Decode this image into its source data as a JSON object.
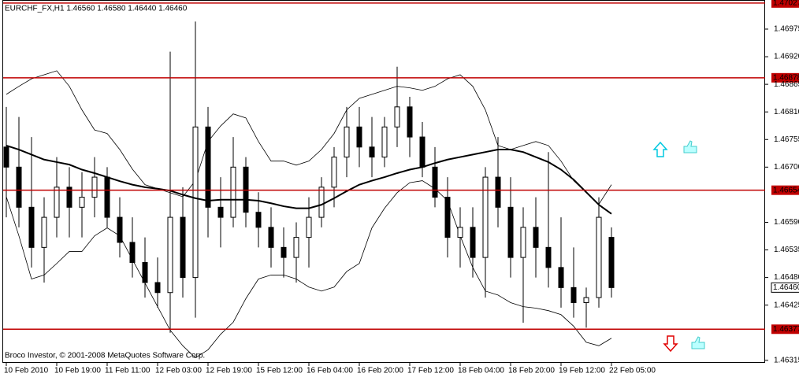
{
  "chart_data": {
    "type": "candlestick",
    "title": "EURCHF_FX,H1  1.46560 1.46580 1.46440 1.46460",
    "copyright": "Broco Investor, © 2001-2008 MetaQuotes Software Corp.",
    "categories": [
      "10 Feb 2010",
      null,
      null,
      null,
      "10 Feb 19:00",
      null,
      null,
      null,
      "11 Feb 11:00",
      null,
      null,
      null,
      "12 Feb 03:00",
      null,
      null,
      null,
      "12 Feb 19:00",
      null,
      null,
      null,
      "15 Feb 12:00",
      null,
      null,
      null,
      "16 Feb 04:00",
      null,
      null,
      null,
      "16 Feb 20:00",
      null,
      null,
      null,
      "17 Feb 12:00",
      null,
      null,
      null,
      "18 Feb 04:00",
      null,
      null,
      null,
      "18 Feb 20:00",
      null,
      null,
      null,
      "19 Feb 12:00",
      null,
      null,
      null,
      "22 Feb 05:00"
    ],
    "open": [
      1.4674,
      1.467,
      1.4662,
      1.4654,
      1.466,
      1.4666,
      1.4662,
      1.4664,
      1.4668,
      1.466,
      1.4655,
      1.4651,
      1.4647,
      1.4645,
      1.466,
      1.4648,
      1.4678,
      1.4662,
      1.466,
      1.467,
      1.4661,
      1.4658,
      1.4654,
      1.4652,
      1.4656,
      1.466,
      1.4666,
      1.4672,
      1.4678,
      1.4674,
      1.4672,
      1.4678,
      1.4682,
      1.4676,
      1.467,
      1.4664,
      1.4656,
      1.4658,
      1.4652,
      1.4668,
      1.4662,
      1.4652,
      1.4658,
      1.4654,
      1.465,
      1.4646,
      1.4643,
      1.4644,
      1.4656
    ],
    "high": [
      1.4682,
      1.468,
      1.4676,
      1.4664,
      1.4672,
      1.467,
      1.4669,
      1.4672,
      1.467,
      1.4664,
      1.466,
      1.4656,
      1.4652,
      1.4693,
      1.4666,
      1.4699,
      1.4682,
      1.4668,
      1.4676,
      1.4672,
      1.4665,
      1.4662,
      1.4658,
      1.4659,
      1.4664,
      1.4668,
      1.4674,
      1.4682,
      1.4682,
      1.468,
      1.468,
      1.469,
      1.4684,
      1.4679,
      1.4674,
      1.4668,
      1.4662,
      1.4662,
      1.467,
      1.4676,
      1.4668,
      1.4662,
      1.4664,
      1.4673,
      1.466,
      1.4654,
      1.4646,
      1.4664,
      1.4658
    ],
    "low": [
      1.466,
      1.4658,
      1.465,
      1.4647,
      1.4656,
      1.4656,
      1.4656,
      1.466,
      1.4658,
      1.4652,
      1.4648,
      1.4644,
      1.4642,
      1.4637,
      1.4644,
      1.464,
      1.4656,
      1.4654,
      1.4658,
      1.4658,
      1.4654,
      1.465,
      1.4648,
      1.4647,
      1.465,
      1.4658,
      1.4662,
      1.4668,
      1.467,
      1.4668,
      1.467,
      1.4674,
      1.4672,
      1.4668,
      1.4662,
      1.4652,
      1.465,
      1.4648,
      1.4644,
      1.4658,
      1.4648,
      1.4639,
      1.4648,
      1.4646,
      1.4642,
      1.464,
      1.4638,
      1.4642,
      1.4644
    ],
    "close": [
      1.467,
      1.4662,
      1.4654,
      1.466,
      1.4666,
      1.4662,
      1.4664,
      1.4668,
      1.466,
      1.4655,
      1.4651,
      1.4647,
      1.4645,
      1.466,
      1.4648,
      1.4678,
      1.4662,
      1.466,
      1.467,
      1.4661,
      1.4658,
      1.4654,
      1.4652,
      1.4656,
      1.466,
      1.4666,
      1.4672,
      1.4678,
      1.4674,
      1.4672,
      1.4678,
      1.4682,
      1.4676,
      1.467,
      1.4664,
      1.4656,
      1.4658,
      1.4652,
      1.4668,
      1.4662,
      1.4652,
      1.4658,
      1.4654,
      1.465,
      1.4646,
      1.4643,
      1.4644,
      1.466,
      1.4646
    ],
    "moving_average": {
      "color": "#000000",
      "values": [
        1.46743,
        1.46735,
        1.46725,
        1.46715,
        1.4671,
        1.46705,
        1.46695,
        1.46688,
        1.4668,
        1.46672,
        1.46665,
        1.4666,
        1.46657,
        1.46653,
        1.46645,
        1.46638,
        1.46633,
        1.46635,
        1.46635,
        1.46635,
        1.46633,
        1.46628,
        1.46622,
        1.46618,
        1.46618,
        1.46625,
        1.46638,
        1.46652,
        1.46665,
        1.46673,
        1.4668,
        1.46688,
        1.46695,
        1.467,
        1.46708,
        1.46715,
        1.4672,
        1.46725,
        1.4673,
        1.46735,
        1.46735,
        1.4673,
        1.4672,
        1.4671,
        1.46695,
        1.46675,
        1.4665,
        1.46625,
        1.46607
      ]
    },
    "band_upper": {
      "color": "#000000",
      "values": [
        1.46845,
        1.46861,
        1.46876,
        1.46884,
        1.46892,
        1.46861,
        1.46814,
        1.46774,
        1.46767,
        1.46735,
        1.46696,
        1.46665,
        1.46657,
        1.46649,
        1.46641,
        1.46673,
        1.46751,
        1.46782,
        1.46806,
        1.46798,
        1.46751,
        1.46712,
        1.46712,
        1.46704,
        1.46712,
        1.46735,
        1.46767,
        1.46814,
        1.46837,
        1.46845,
        1.46853,
        1.46861,
        1.46858,
        1.46853,
        1.46861,
        1.46876,
        1.46884,
        1.46861,
        1.46814,
        1.46743,
        1.46735,
        1.46743,
        1.46751,
        1.46743,
        1.46712,
        1.46673,
        1.46649,
        1.46626,
        1.46665
      ]
    },
    "band_lower": {
      "color": "#000000",
      "values": [
        1.46641,
        1.46563,
        1.46477,
        1.46485,
        1.46508,
        1.46532,
        1.46532,
        1.46563,
        1.46579,
        1.46563,
        1.46516,
        1.46469,
        1.46422,
        1.46375,
        1.46344,
        1.4632,
        1.46336,
        1.46367,
        1.46391,
        1.46438,
        1.46477,
        1.46485,
        1.46485,
        1.46477,
        1.46461,
        1.46453,
        1.46461,
        1.46492,
        1.46508,
        1.46579,
        1.46618,
        1.46649,
        1.46669,
        1.46673,
        1.46657,
        1.46633,
        1.46563,
        1.465,
        1.46453,
        1.46445,
        1.4643,
        1.46422,
        1.46419,
        1.46414,
        1.46406,
        1.46383,
        1.46351,
        1.46344,
        1.46359
      ]
    },
    "candle_color": "#000000",
    "level_color": "#c00000",
    "levels": [
      1.47027,
      1.46878,
      {
        "value": 1.46654,
        "label": "1.46654"
      },
      1.46377
    ],
    "current_price": {
      "value": 1.4646,
      "label": "1.46460"
    },
    "ylim": [
      1.4631,
      1.47033
    ],
    "yticks": [
      1.46975,
      {
        "value": 1.4692,
        "label": "1.46920"
      },
      1.46865,
      {
        "value": 1.4681,
        "label": "1.46810"
      },
      1.46755,
      {
        "value": 1.467,
        "label": "1.46700"
      },
      {
        "value": 1.4659,
        "label": "1.46590"
      },
      1.46535,
      {
        "value": 1.4648,
        "label": "1.46480"
      },
      1.46425,
      1.46315
    ]
  }
}
